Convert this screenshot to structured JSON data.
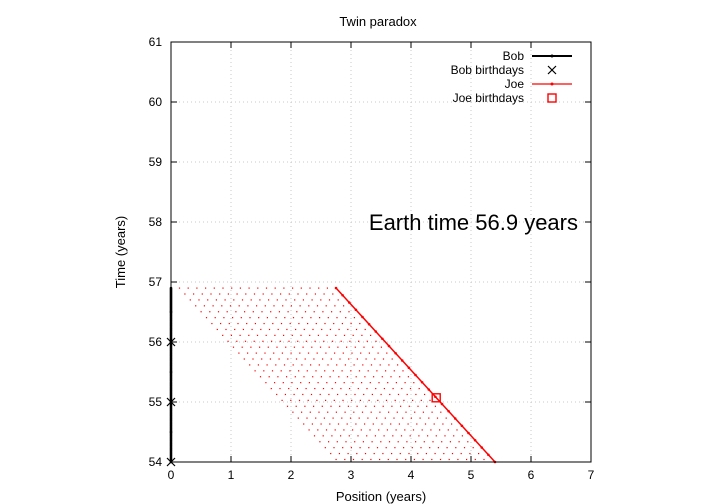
{
  "chart_data": {
    "type": "line",
    "title": "Twin paradox",
    "xlabel": "Position (years)",
    "ylabel": "Time (years)",
    "xlim": [
      0,
      7
    ],
    "ylim": [
      54,
      61
    ],
    "xticks": [
      "0",
      "1",
      "2",
      "3",
      "4",
      "5",
      "6",
      "7"
    ],
    "yticks": [
      "54",
      "55",
      "56",
      "57",
      "58",
      "59",
      "60",
      "61"
    ],
    "grid": true,
    "legend_position": "top-right",
    "annotation": "Earth time 56.9 years",
    "series": [
      {
        "name": "Bob",
        "color": "#000000",
        "style": "line-dots",
        "points": [
          [
            0,
            54.0
          ],
          [
            0,
            54.5
          ],
          [
            0,
            55.0
          ],
          [
            0,
            55.5
          ],
          [
            0,
            56.0
          ],
          [
            0,
            56.5
          ],
          [
            0,
            56.9
          ]
        ]
      },
      {
        "name": "Bob birthdays",
        "color": "#000000",
        "style": "x-markers",
        "points": [
          [
            0,
            54
          ],
          [
            0,
            55
          ],
          [
            0,
            56
          ]
        ]
      },
      {
        "name": "Joe",
        "color": "#ff0000",
        "style": "line-dots",
        "points": [
          [
            2.75,
            56.9
          ],
          [
            5.4,
            54.0
          ]
        ]
      },
      {
        "name": "Joe birthdays",
        "color": "#ff0000",
        "style": "square-markers",
        "points": [
          [
            4.42,
            55.07
          ]
        ]
      }
    ]
  }
}
